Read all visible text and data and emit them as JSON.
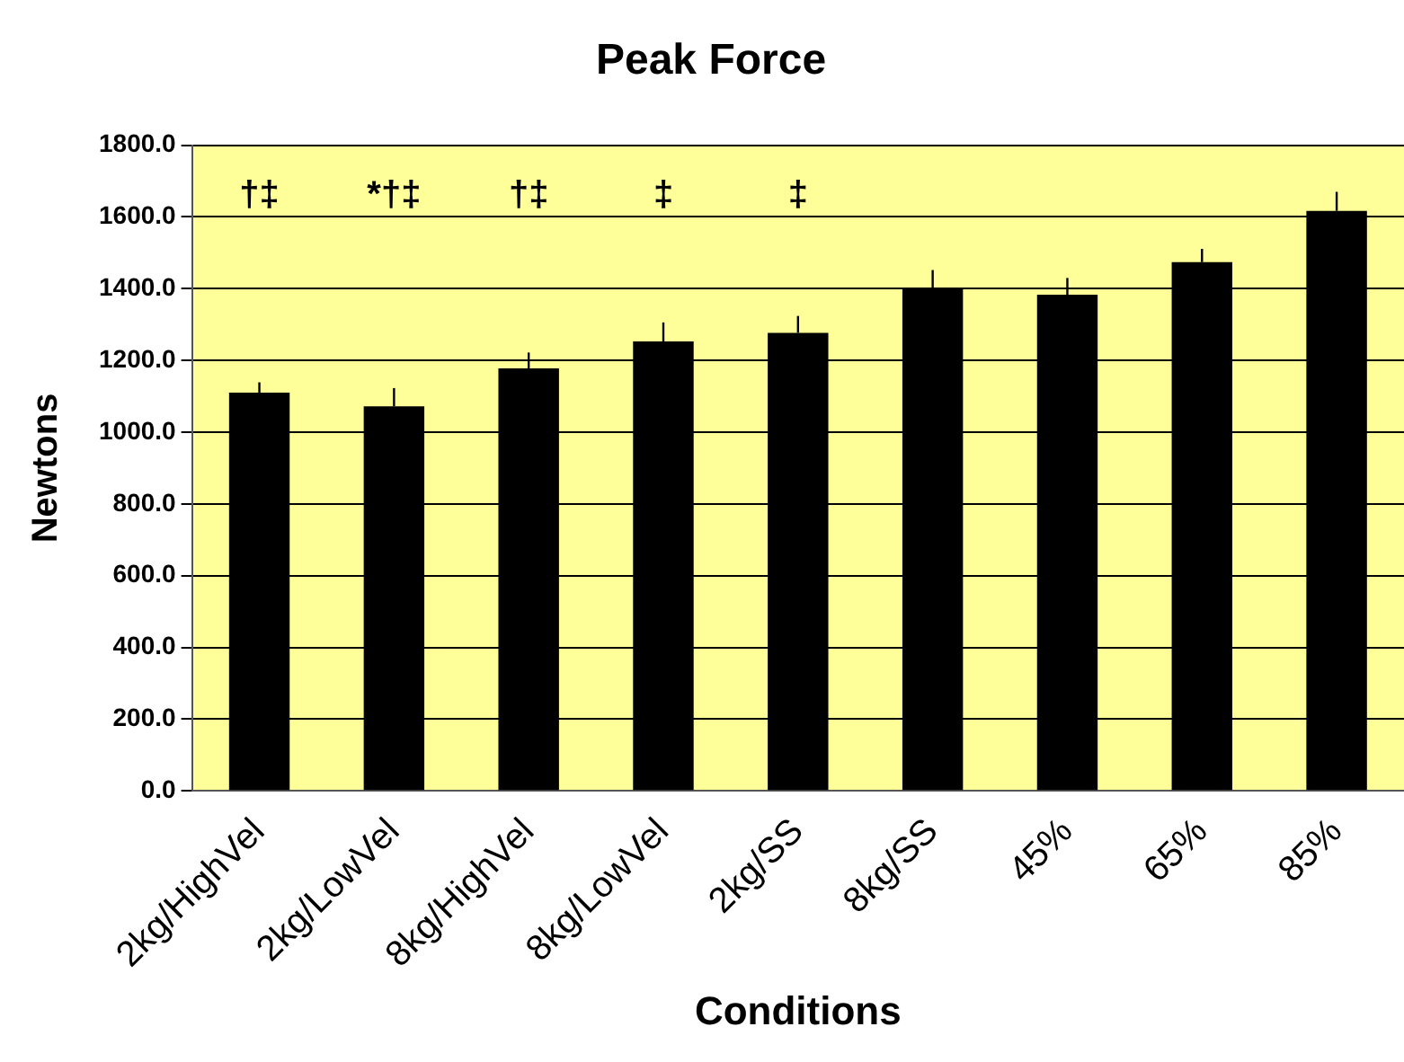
{
  "chart_data": {
    "type": "bar",
    "title": "Peak Force",
    "xlabel": "Conditions",
    "ylabel": "Newtons",
    "categories": [
      "2kg/HighVel",
      "2kg/LowVel",
      "8kg/HighVel",
      "8kg/LowVel",
      "2kg/SS",
      "8kg/SS",
      "45%",
      "65%",
      "85%"
    ],
    "series": [
      {
        "color": "#000000",
        "values": [
          1110,
          1072,
          1178,
          1253,
          1277,
          1399,
          1383,
          1474,
          1617
        ],
        "errors": [
          [
            1110,
            1139
          ],
          [
            1072,
            1123
          ],
          [
            1178,
            1222
          ],
          [
            1253,
            1306
          ],
          [
            1277,
            1324
          ],
          [
            1399,
            1452
          ],
          [
            1383,
            1430
          ],
          [
            1474,
            1511
          ],
          [
            1617,
            1670
          ]
        ]
      }
    ],
    "ylim": [
      0,
      1800
    ],
    "yticks": [
      {
        "value": 0,
        "label": "0.0"
      },
      {
        "value": 200,
        "label": "200.0"
      },
      {
        "value": 400,
        "label": "400.0"
      },
      {
        "value": 600,
        "label": "600.0"
      },
      {
        "value": 800,
        "label": "800.0"
      },
      {
        "value": 1000,
        "label": "1000.0"
      },
      {
        "value": 1200,
        "label": "1200.0"
      },
      {
        "value": 1400,
        "label": "1400.0"
      },
      {
        "value": 1600,
        "label": "1600.0"
      },
      {
        "value": 1800,
        "label": "1800.0"
      }
    ],
    "annotations": [
      "†‡",
      "*†‡",
      "†‡",
      "‡",
      "‡"
    ],
    "grid": "y",
    "legend": false
  }
}
